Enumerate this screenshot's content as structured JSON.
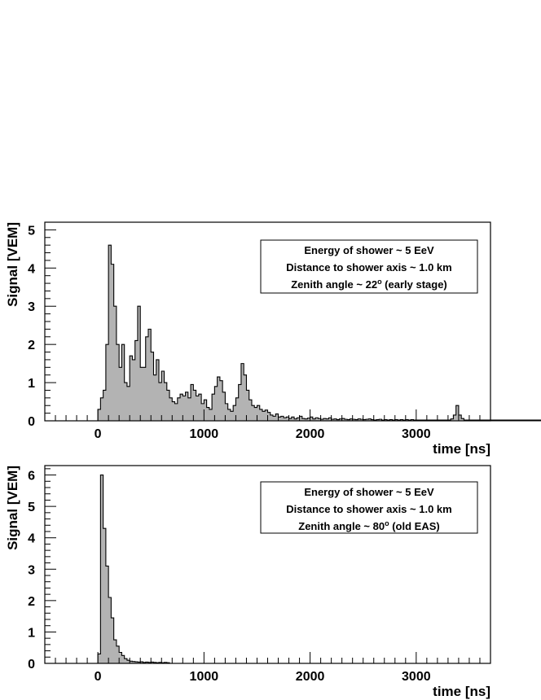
{
  "chart_data": [
    {
      "type": "histogram",
      "xlabel": "time [ns]",
      "ylabel": "Signal [VEM]",
      "xlim": [
        -500,
        3700
      ],
      "ylim": [
        0,
        5.2
      ],
      "xticks": [
        0,
        1000,
        2000,
        3000
      ],
      "yticks": [
        0,
        1,
        2,
        3,
        4,
        5
      ],
      "fill_color": "#b3b3b3",
      "line_color": "#000000",
      "annotation": {
        "line1": "Energy of shower ~ 5 EeV",
        "line2": "Distance to shower axis ~ 1.0 km",
        "line3_pre": "Zenith angle ~ 22",
        "line3_sup": "o",
        "line3_post": " (early stage)"
      },
      "bin_start": 0,
      "bin_width": 25,
      "values": [
        0.3,
        0.6,
        0.8,
        2.0,
        4.6,
        4.1,
        3.0,
        2.0,
        1.4,
        2.0,
        1.0,
        0.9,
        1.7,
        1.6,
        2.1,
        3.0,
        1.4,
        1.4,
        2.2,
        2.4,
        1.8,
        1.2,
        1.6,
        1.0,
        1.3,
        1.0,
        0.8,
        0.6,
        0.5,
        0.45,
        0.6,
        0.7,
        0.65,
        0.75,
        0.6,
        0.95,
        0.8,
        0.65,
        0.7,
        0.45,
        0.55,
        0.35,
        0.3,
        0.7,
        0.9,
        1.15,
        1.05,
        0.75,
        0.45,
        0.3,
        0.25,
        0.4,
        0.6,
        0.95,
        1.5,
        1.2,
        0.8,
        0.55,
        0.4,
        0.35,
        0.4,
        0.3,
        0.25,
        0.28,
        0.22,
        0.15,
        0.12,
        0.18,
        0.1,
        0.12,
        0.08,
        0.1,
        0.06,
        0.1,
        0.05,
        0.08,
        0.12,
        0.06,
        0.05,
        0.07,
        0.1,
        0.05,
        0.08,
        0.06,
        0.04,
        0.06,
        0.05,
        0.08,
        0.04,
        0.05,
        0.03,
        0.05,
        0.06,
        0.04,
        0.03,
        0.05,
        0.04,
        0.03,
        0.05,
        0.04,
        0.03,
        0.04,
        0.05,
        0.03,
        0.02,
        0.03,
        0.04,
        0.02,
        0.03,
        0.02,
        0.03,
        0.02,
        0.03,
        0.02,
        0.03,
        0.02,
        0.03,
        0.02,
        0.03,
        0.02,
        0.02,
        0.02,
        0.02,
        0.02,
        0.02,
        0.02,
        0.02,
        0.02,
        0.02,
        0.02,
        0.02,
        0.02,
        0.02,
        0.02,
        0.02,
        0.02,
        0.02,
        0.02,
        0.02,
        0.02,
        0.02,
        0.02,
        0.02,
        0.02,
        0.02,
        0.02,
        0.02,
        0.02,
        0.02,
        0.02,
        0.02,
        0.02,
        0.02,
        0.02,
        0.02,
        0.02,
        0.02,
        0.02,
        0.02,
        0.02,
        0.02,
        0.02,
        0.02,
        0.02,
        0.02,
        0.02,
        0.02,
        0.02,
        0.02,
        0.02,
        0.02,
        0.02,
        0.02,
        0.02,
        0.02,
        0.02,
        0.02,
        0.02,
        0.02,
        0.02,
        0.02,
        0.02,
        0.02,
        0.02,
        0.02,
        0.02,
        0.02,
        0.02,
        0.02,
        0.02,
        0.02,
        0.02,
        0.02,
        0.02,
        0.02,
        0.02,
        0.02,
        0.02,
        0.02,
        0.02,
        0.02,
        0.02,
        0.02,
        0.02,
        0.02,
        0.02,
        0.02,
        0.02,
        0.02,
        0.02,
        0.02,
        0.02,
        0.02,
        0.02,
        0.02,
        0.02,
        0.02,
        0.02,
        0.02,
        0.02,
        0.02,
        0.02,
        0.02,
        0.02,
        0.02,
        0.02,
        0.02,
        0.02,
        0.02,
        0.02,
        0.02,
        0.02,
        0.02,
        0.02,
        0.02,
        0.02,
        0.02,
        0.02,
        0.02,
        0.02,
        0.02,
        0.02,
        0.02,
        0.02,
        0.02,
        0.02,
        0.02,
        0.02,
        0.02,
        0.02,
        0.02,
        0.02,
        0.02,
        0.02,
        0.02,
        0.02,
        0.02,
        0.02,
        0.02,
        0.02,
        0.02,
        0.02,
        0.02,
        0.02,
        0.02,
        0.02,
        0.02,
        0.02,
        0.02,
        0.02,
        0.02,
        0.02,
        0.02,
        0.02,
        0.02,
        0.02,
        0.02,
        0.02,
        0.02,
        0.02,
        0.02,
        0.02,
        0.02,
        0.02,
        0.02,
        0.02,
        0.02,
        0.02,
        0.02,
        0.02,
        0.02,
        0.02,
        0.02,
        0.02,
        0.02,
        0.02,
        0.02,
        0.02,
        0.02,
        0.02,
        0.02,
        0.02,
        0.02,
        0.02,
        0.02,
        0.02,
        0.02,
        0.02,
        0.02,
        0.02,
        0.02,
        0.02,
        0.02,
        0.02,
        0.02,
        0.02,
        0.02,
        0.02,
        0.02,
        0.02,
        0.02,
        0.02,
        0.02,
        0.02,
        0.02,
        0.02,
        0.02,
        0.02,
        0.02,
        0.02,
        0.02,
        0.02,
        0.02,
        0.02,
        0.02,
        0.02,
        0.02,
        0.02,
        0.02,
        0.02,
        0.02,
        0.02,
        0.02,
        0.02,
        0.02,
        0.02,
        0.02,
        0.02,
        0.02,
        0.02,
        0.02,
        0.02,
        0.02,
        0.02,
        0.02,
        0.02,
        0.02,
        0.02,
        0.02,
        0.02
      ],
      "overrides": [
        {
          "x": 3325,
          "v": 0.05
        },
        {
          "x": 3350,
          "v": 0.15
        },
        {
          "x": 3375,
          "v": 0.4
        },
        {
          "x": 3400,
          "v": 0.15
        },
        {
          "x": 3425,
          "v": 0.06
        }
      ]
    },
    {
      "type": "histogram",
      "xlabel": "time [ns]",
      "ylabel": "Signal [VEM]",
      "xlim": [
        -500,
        3700
      ],
      "ylim": [
        0,
        6.3
      ],
      "xticks": [
        0,
        1000,
        2000,
        3000
      ],
      "yticks": [
        0,
        1,
        2,
        3,
        4,
        5,
        6
      ],
      "fill_color": "#b3b3b3",
      "line_color": "#000000",
      "annotation": {
        "line1": "Energy of shower ~ 5 EeV",
        "line2": "Distance to shower axis ~ 1.0 km",
        "line3_pre": "Zenith angle ~ 80",
        "line3_sup": "o",
        "line3_post": " (old EAS)"
      },
      "bin_start": 0,
      "bin_width": 25,
      "values": [
        0.3,
        6.0,
        4.3,
        3.1,
        2.1,
        1.45,
        0.75,
        0.55,
        0.35,
        0.25,
        0.15,
        0.1,
        0.07,
        0.06,
        0.05,
        0.04,
        0.05,
        0.03,
        0.04,
        0.03,
        0.04,
        0.03,
        0.02,
        0.03,
        0.02,
        0.03,
        0.02
      ]
    }
  ]
}
